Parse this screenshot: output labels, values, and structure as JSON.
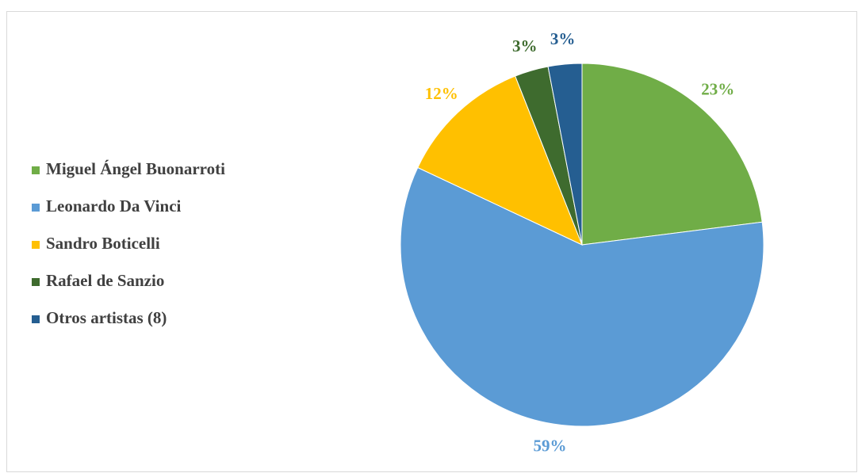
{
  "chart_data": {
    "type": "pie",
    "categories": [
      "Miguel Ángel Buonarroti",
      "Leonardo Da Vinci",
      "Sandro Boticelli",
      "Rafael de Sanzio",
      "Otros artistas (8)"
    ],
    "values": [
      23,
      59,
      12,
      3,
      3
    ],
    "value_labels": [
      "23%",
      "59%",
      "12%",
      "3%",
      "3%"
    ],
    "colors": [
      "#70ad47",
      "#5b9bd5",
      "#ffc000",
      "#3e6b2e",
      "#255e91"
    ],
    "legend": "left"
  }
}
